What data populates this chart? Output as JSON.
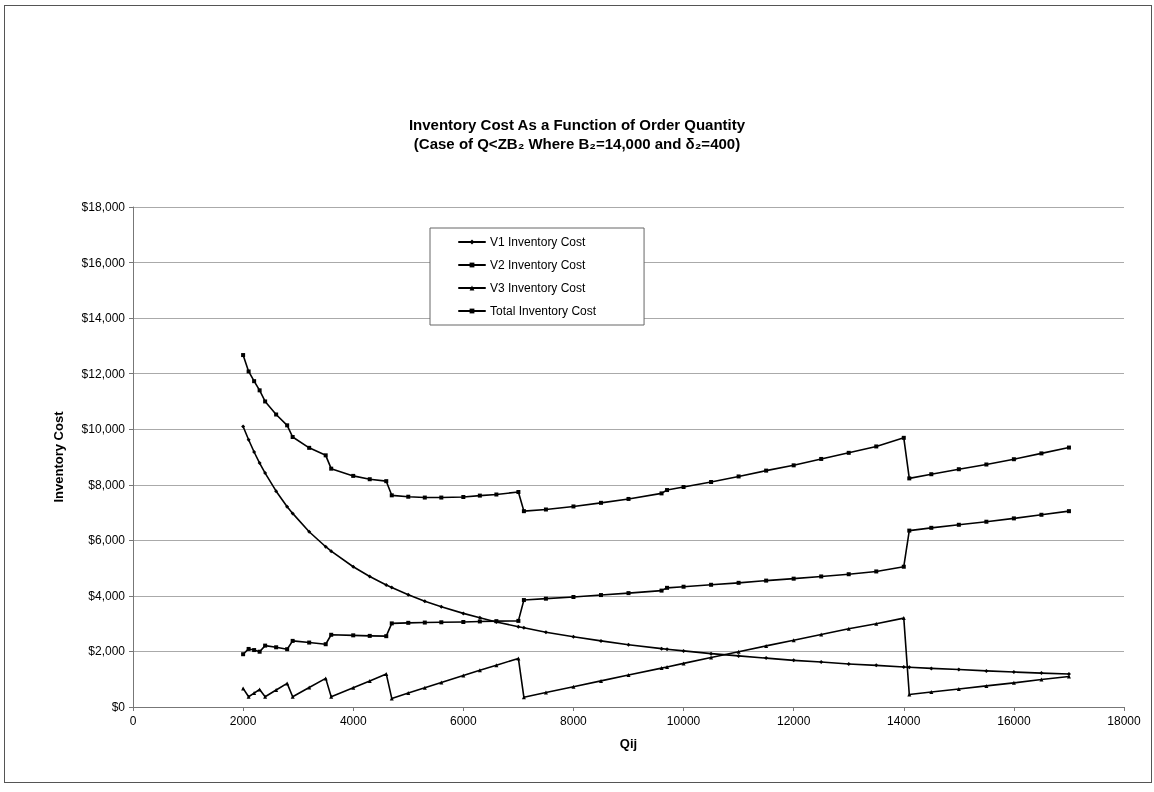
{
  "chart_data": {
    "type": "line",
    "title": "Inventory Cost As a Function of Order Quantity",
    "subtitle": "(Case of Q<ZB₂ Where B₂=14,000 and δ₂=400)",
    "xlabel": "Qij",
    "ylabel": "Inventory Cost",
    "x": [
      2000,
      2100,
      2200,
      2300,
      2400,
      2600,
      2800,
      2900,
      3200,
      3500,
      3600,
      4000,
      4300,
      4600,
      4700,
      5000,
      5300,
      5600,
      6000,
      6300,
      6600,
      7000,
      7100,
      7500,
      8000,
      8500,
      9000,
      9600,
      9700,
      10000,
      10500,
      11000,
      11500,
      12000,
      12500,
      13000,
      13500,
      14000,
      14100,
      14500,
      15000,
      15500,
      16000,
      16500,
      17000
    ],
    "series": [
      {
        "name": "V1 Inventory Cost",
        "color": "#000000",
        "marker": "diamond",
        "values": [
          10100,
          9620,
          9180,
          8780,
          8420,
          7770,
          7210,
          6970,
          6310,
          5770,
          5610,
          5050,
          4700,
          4390,
          4300,
          4040,
          3810,
          3610,
          3370,
          3210,
          3060,
          2890,
          2850,
          2690,
          2530,
          2380,
          2240,
          2100,
          2080,
          2020,
          1920,
          1840,
          1760,
          1680,
          1620,
          1550,
          1500,
          1440,
          1430,
          1390,
          1350,
          1300,
          1260,
          1220,
          1190
        ]
      },
      {
        "name": "V2 Inventory Cost",
        "color": "#000000",
        "marker": "square",
        "values": [
          1900,
          2090,
          2050,
          1990,
          2210,
          2150,
          2080,
          2380,
          2320,
          2260,
          2600,
          2580,
          2560,
          2550,
          3010,
          3030,
          3040,
          3050,
          3060,
          3080,
          3090,
          3100,
          3850,
          3900,
          3960,
          4030,
          4100,
          4190,
          4290,
          4330,
          4400,
          4470,
          4550,
          4620,
          4700,
          4780,
          4880,
          5050,
          6350,
          6450,
          6560,
          6670,
          6790,
          6920,
          7050
        ]
      },
      {
        "name": "V3 Inventory Cost",
        "color": "#000000",
        "marker": "triangle",
        "values": [
          670,
          370,
          500,
          630,
          370,
          610,
          850,
          370,
          700,
          1030,
          370,
          690,
          940,
          1190,
          310,
          500,
          690,
          880,
          1130,
          1320,
          1500,
          1750,
          350,
          520,
          730,
          940,
          1150,
          1400,
          1440,
          1570,
          1780,
          1990,
          2200,
          2400,
          2610,
          2820,
          3000,
          3200,
          450,
          540,
          650,
          760,
          870,
          990,
          1100
        ]
      },
      {
        "name": "Total Inventory Cost",
        "color": "#000000",
        "marker": "square",
        "values": [
          12670,
          12080,
          11730,
          11400,
          11000,
          10530,
          10140,
          9720,
          9330,
          9060,
          8580,
          8320,
          8200,
          8130,
          7620,
          7570,
          7540,
          7540,
          7560,
          7610,
          7650,
          7740,
          7050,
          7110,
          7220,
          7350,
          7490,
          7690,
          7810,
          7920,
          8100,
          8300,
          8510,
          8700,
          8930,
          9150,
          9380,
          9690,
          8230,
          8380,
          8560,
          8730,
          8920,
          9130,
          9340
        ]
      }
    ],
    "xlim": [
      0,
      18000
    ],
    "xticks": [
      0,
      2000,
      4000,
      6000,
      8000,
      10000,
      12000,
      14000,
      16000,
      18000
    ],
    "ylim": [
      0,
      18000
    ],
    "yticks": [
      {
        "value": 0,
        "label": "$0"
      },
      {
        "value": 2000,
        "label": "$2,000"
      },
      {
        "value": 4000,
        "label": "$4,000"
      },
      {
        "value": 6000,
        "label": "$6,000"
      },
      {
        "value": 8000,
        "label": "$8,000"
      },
      {
        "value": 10000,
        "label": "$10,000"
      },
      {
        "value": 12000,
        "label": "$12,000"
      },
      {
        "value": 14000,
        "label": "$14,000"
      },
      {
        "value": 16000,
        "label": "$16,000"
      },
      {
        "value": 18000,
        "label": "$18,000"
      }
    ],
    "grid": "y",
    "legend": "top",
    "line_style": "solid"
  }
}
